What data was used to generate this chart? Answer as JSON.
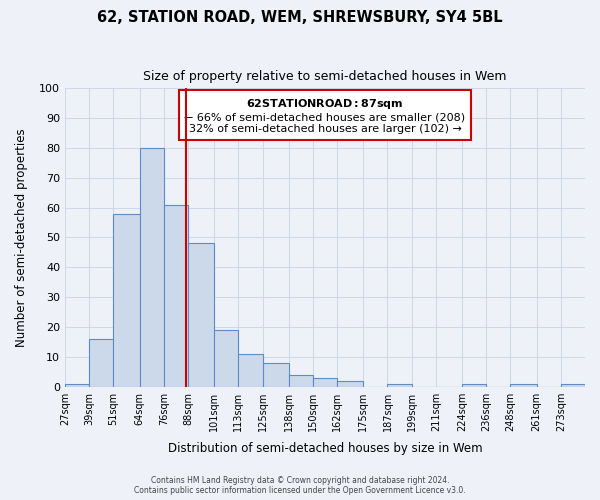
{
  "title": "62, STATION ROAD, WEM, SHREWSBURY, SY4 5BL",
  "subtitle": "Size of property relative to semi-detached houses in Wem",
  "xlabel": "Distribution of semi-detached houses by size in Wem",
  "ylabel": "Number of semi-detached properties",
  "bin_labels": [
    "27sqm",
    "39sqm",
    "51sqm",
    "64sqm",
    "76sqm",
    "88sqm",
    "101sqm",
    "113sqm",
    "125sqm",
    "138sqm",
    "150sqm",
    "162sqm",
    "175sqm",
    "187sqm",
    "199sqm",
    "211sqm",
    "224sqm",
    "236sqm",
    "248sqm",
    "261sqm",
    "273sqm"
  ],
  "bin_edges": [
    27,
    39,
    51,
    64,
    76,
    88,
    101,
    113,
    125,
    138,
    150,
    162,
    175,
    187,
    199,
    211,
    224,
    236,
    248,
    261,
    273,
    285
  ],
  "bar_heights": [
    1,
    16,
    58,
    80,
    61,
    48,
    19,
    11,
    8,
    4,
    3,
    2,
    0,
    1,
    0,
    0,
    1,
    0,
    1,
    0,
    1
  ],
  "bar_color": "#ccd9eb",
  "bar_edgecolor": "#5b8cc8",
  "grid_color": "#d0d8e8",
  "background_color": "#eef2f8",
  "property_value": 87,
  "vline_color": "#cc0000",
  "vline_x": 87,
  "annotation_title": "62 STATION ROAD: 87sqm",
  "annotation_line1": "← 66% of semi-detached houses are smaller (208)",
  "annotation_line2": "32% of semi-detached houses are larger (102) →",
  "annotation_box_color": "#ffffff",
  "annotation_box_edgecolor": "#cc0000",
  "ylim": [
    0,
    100
  ],
  "footer1": "Contains HM Land Registry data © Crown copyright and database right 2024.",
  "footer2": "Contains public sector information licensed under the Open Government Licence v3.0."
}
